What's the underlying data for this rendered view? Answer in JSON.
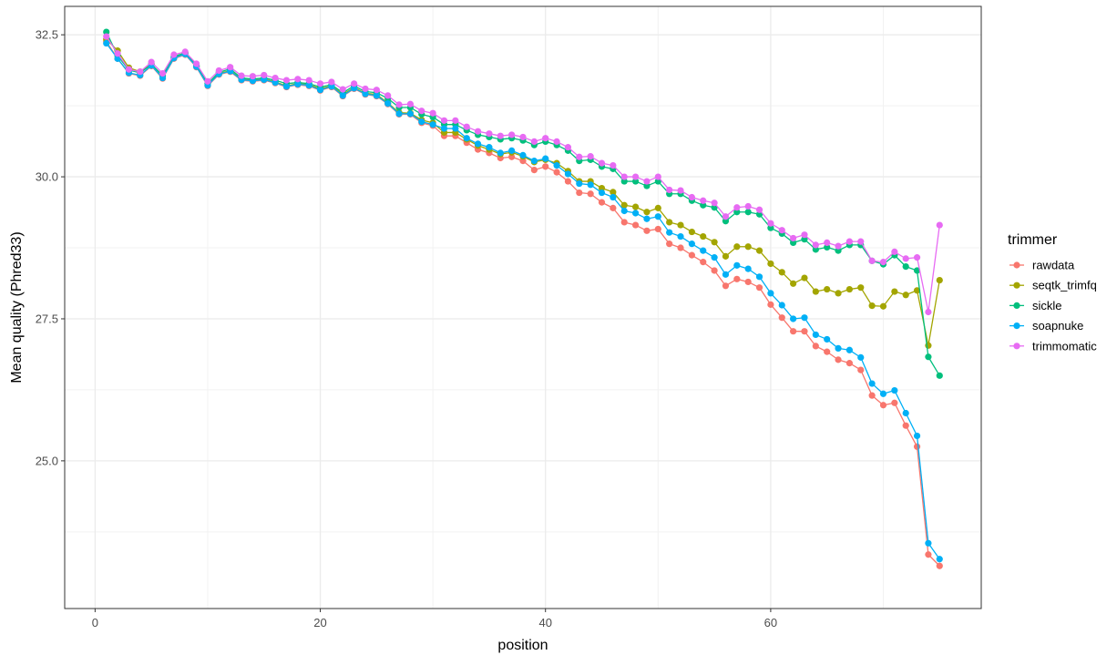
{
  "chart_data": {
    "type": "line",
    "xlabel": "position",
    "ylabel": "Mean quality (Phred33)",
    "xlim": [
      -2.7,
      78.7
    ],
    "ylim": [
      22.4,
      33.0
    ],
    "x_ticks": [
      0,
      20,
      40,
      60
    ],
    "x_tick_labels": [
      "0",
      "20",
      "40",
      "60"
    ],
    "x_minor_ticks": [
      10,
      30,
      50,
      70
    ],
    "y_ticks": [
      25.0,
      27.5,
      30.0,
      32.5
    ],
    "y_tick_labels": [
      "25.0",
      "27.5",
      "30.0",
      "32.5"
    ],
    "y_minor_ticks": [
      23.75,
      26.25,
      28.75,
      31.25
    ],
    "grid": true,
    "legend_position": "right",
    "legend_title": "trimmer",
    "x": [
      1,
      2,
      3,
      4,
      5,
      6,
      7,
      8,
      9,
      10,
      11,
      12,
      13,
      14,
      15,
      16,
      17,
      18,
      19,
      20,
      21,
      22,
      23,
      24,
      25,
      26,
      27,
      28,
      29,
      30,
      31,
      32,
      33,
      34,
      35,
      36,
      37,
      38,
      39,
      40,
      41,
      42,
      43,
      44,
      45,
      46,
      47,
      48,
      49,
      50,
      51,
      52,
      53,
      54,
      55,
      56,
      57,
      58,
      59,
      60,
      61,
      62,
      63,
      64,
      65,
      66,
      67,
      68,
      69,
      70,
      71,
      72,
      73,
      74,
      75
    ],
    "series": [
      {
        "name": "rawdata",
        "color": "#F8766D",
        "values": [
          32.38,
          32.08,
          31.82,
          31.78,
          31.95,
          31.73,
          32.08,
          32.15,
          31.93,
          31.6,
          31.8,
          31.85,
          31.7,
          31.68,
          31.7,
          31.65,
          31.58,
          31.62,
          31.6,
          31.52,
          31.58,
          31.42,
          31.55,
          31.45,
          31.42,
          31.28,
          31.1,
          31.1,
          30.95,
          30.9,
          30.72,
          30.72,
          30.6,
          30.48,
          30.42,
          30.33,
          30.35,
          30.28,
          30.12,
          30.18,
          30.08,
          29.92,
          29.72,
          29.7,
          29.55,
          29.45,
          29.2,
          29.15,
          29.05,
          29.08,
          28.82,
          28.75,
          28.62,
          28.5,
          28.35,
          28.08,
          28.2,
          28.15,
          28.05,
          27.75,
          27.52,
          27.28,
          27.28,
          27.02,
          26.92,
          26.78,
          26.72,
          26.6,
          26.15,
          25.98,
          26.02,
          25.62,
          25.25,
          23.35,
          23.15
        ]
      },
      {
        "name": "seqtk_trimfq",
        "color": "#A3A500",
        "values": [
          32.42,
          32.22,
          31.92,
          31.85,
          31.98,
          31.78,
          32.1,
          32.18,
          31.95,
          31.62,
          31.82,
          31.87,
          31.72,
          31.7,
          31.72,
          31.67,
          31.6,
          31.64,
          31.62,
          31.55,
          31.6,
          31.45,
          31.57,
          31.47,
          31.45,
          31.3,
          31.13,
          31.12,
          31.0,
          30.95,
          30.78,
          30.78,
          30.66,
          30.55,
          30.48,
          30.4,
          30.43,
          30.36,
          30.26,
          30.3,
          30.24,
          30.1,
          29.92,
          29.92,
          29.8,
          29.73,
          29.5,
          29.47,
          29.38,
          29.45,
          29.2,
          29.15,
          29.03,
          28.95,
          28.85,
          28.6,
          28.77,
          28.77,
          28.7,
          28.47,
          28.32,
          28.12,
          28.22,
          27.98,
          28.02,
          27.95,
          28.02,
          28.05,
          27.73,
          27.72,
          27.98,
          27.92,
          28.0,
          27.03,
          28.18
        ]
      },
      {
        "name": "sickle",
        "color": "#00BF7D",
        "values": [
          32.55,
          32.13,
          31.88,
          31.83,
          31.98,
          31.78,
          32.12,
          32.18,
          31.96,
          31.64,
          31.84,
          31.9,
          31.74,
          31.72,
          31.74,
          31.7,
          31.64,
          31.66,
          31.64,
          31.58,
          31.62,
          31.48,
          31.6,
          31.5,
          31.48,
          31.38,
          31.22,
          31.22,
          31.1,
          31.05,
          30.92,
          30.92,
          30.82,
          30.74,
          30.7,
          30.66,
          30.68,
          30.64,
          30.56,
          30.62,
          30.56,
          30.46,
          30.28,
          30.3,
          30.18,
          30.14,
          29.92,
          29.92,
          29.84,
          29.92,
          29.7,
          29.7,
          29.58,
          29.5,
          29.46,
          29.22,
          29.38,
          29.38,
          29.34,
          29.1,
          29.0,
          28.84,
          28.9,
          28.72,
          28.76,
          28.7,
          28.8,
          28.8,
          28.52,
          28.46,
          28.62,
          28.42,
          28.35,
          26.83,
          26.5
        ]
      },
      {
        "name": "soapnuke",
        "color": "#00B0F6",
        "values": [
          32.35,
          32.08,
          31.83,
          31.79,
          31.96,
          31.74,
          32.09,
          32.16,
          31.94,
          31.61,
          31.81,
          31.86,
          31.71,
          31.69,
          31.71,
          31.66,
          31.59,
          31.63,
          31.61,
          31.53,
          31.59,
          31.43,
          31.56,
          31.46,
          31.43,
          31.29,
          31.11,
          31.11,
          30.97,
          30.92,
          30.85,
          30.85,
          30.68,
          30.58,
          30.52,
          30.42,
          30.46,
          30.38,
          30.28,
          30.32,
          30.2,
          30.05,
          29.88,
          29.86,
          29.72,
          29.64,
          29.4,
          29.36,
          29.26,
          29.3,
          29.02,
          28.95,
          28.82,
          28.7,
          28.58,
          28.28,
          28.44,
          28.38,
          28.24,
          27.95,
          27.74,
          27.5,
          27.52,
          27.22,
          27.14,
          26.98,
          26.95,
          26.82,
          26.36,
          26.18,
          26.24,
          25.84,
          25.44,
          23.55,
          23.27
        ]
      },
      {
        "name": "trimmomatic",
        "color": "#E76BF3",
        "values": [
          32.47,
          32.17,
          31.89,
          31.85,
          32.02,
          31.82,
          32.15,
          32.2,
          31.99,
          31.68,
          31.87,
          31.93,
          31.78,
          31.77,
          31.79,
          31.74,
          31.7,
          31.72,
          31.7,
          31.64,
          31.67,
          31.54,
          31.64,
          31.55,
          31.53,
          31.43,
          31.27,
          31.28,
          31.16,
          31.12,
          30.99,
          30.99,
          30.88,
          30.8,
          30.76,
          30.72,
          30.74,
          30.7,
          30.62,
          30.68,
          30.62,
          30.52,
          30.35,
          30.36,
          30.24,
          30.2,
          30.0,
          30.0,
          29.92,
          30.0,
          29.77,
          29.76,
          29.64,
          29.58,
          29.54,
          29.3,
          29.46,
          29.48,
          29.42,
          29.18,
          29.06,
          28.92,
          28.98,
          28.8,
          28.84,
          28.78,
          28.86,
          28.86,
          28.52,
          28.5,
          28.68,
          28.56,
          28.58,
          27.62,
          29.15
        ]
      }
    ]
  }
}
